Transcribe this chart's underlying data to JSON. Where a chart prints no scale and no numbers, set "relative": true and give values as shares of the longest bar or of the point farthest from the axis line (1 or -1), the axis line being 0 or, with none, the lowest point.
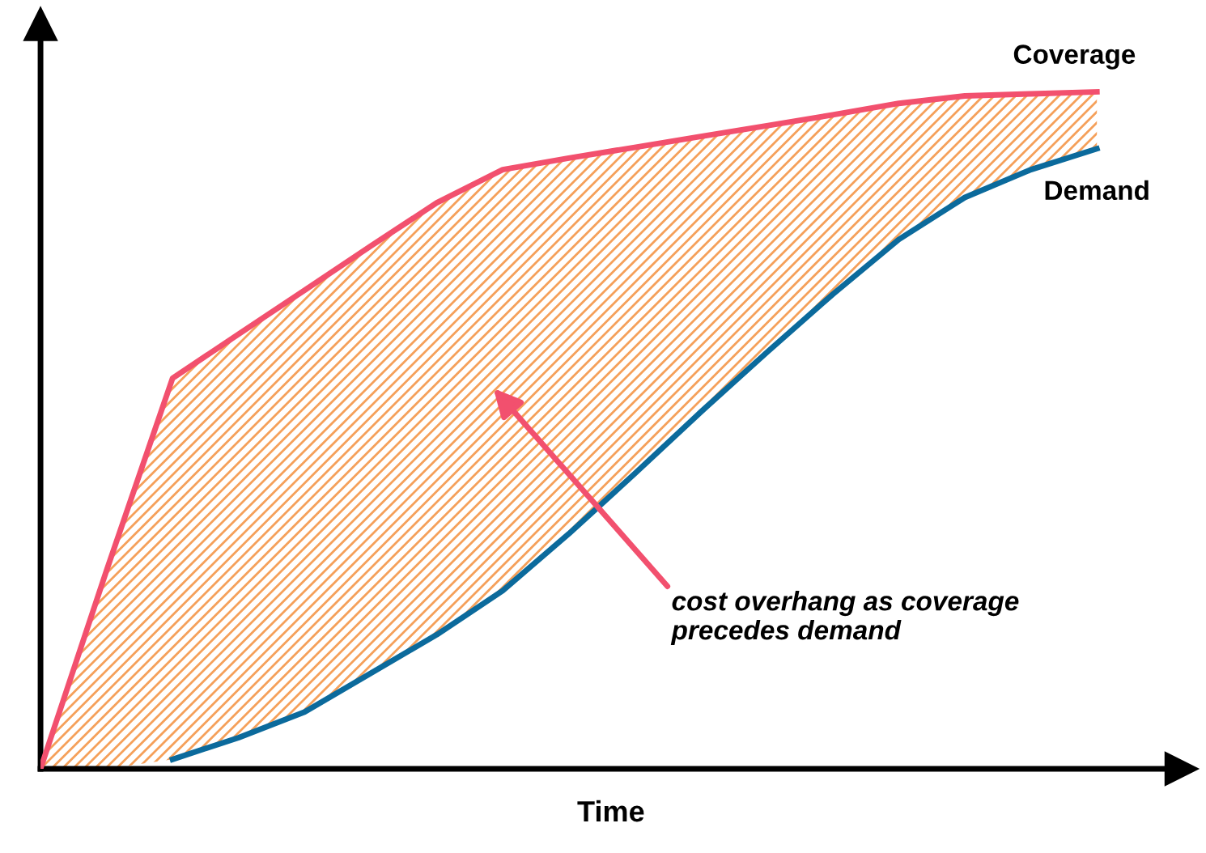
{
  "chart_data": {
    "type": "line",
    "relative": true,
    "xlabel": "Time",
    "tick_labels": false,
    "legend": false,
    "marker": "none",
    "line_style": "solid",
    "categories": [
      null,
      null,
      null,
      null,
      null,
      null,
      null,
      null,
      null,
      null,
      null,
      null,
      null,
      null,
      null,
      null,
      null
    ],
    "series": [
      {
        "name": "Coverage",
        "color": "#f2506e",
        "values": [
          0,
          0.293,
          0.577,
          0.642,
          0.707,
          0.772,
          0.836,
          0.885,
          0.902,
          0.918,
          0.934,
          0.95,
          0.966,
          0.983,
          0.994,
          0.997,
          1.0
        ],
        "lower": [
          0,
          0,
          0.014,
          0.046,
          0.084,
          0.141,
          0.198,
          0.263,
          0.347,
          0.436,
          0.527,
          0.615,
          0.701,
          0.782,
          0.844,
          0.885,
          0.916
        ],
        "upper": [
          0,
          0.293,
          0.577,
          0.642,
          0.707,
          0.772,
          0.836,
          0.885,
          0.902,
          0.918,
          0.934,
          0.95,
          0.966,
          0.983,
          0.994,
          0.997,
          1.0
        ]
      },
      {
        "name": "Demand",
        "color": "#0b6a9c",
        "values": [
          null,
          null,
          0.014,
          0.046,
          0.084,
          0.141,
          0.198,
          0.263,
          0.347,
          0.436,
          0.527,
          0.615,
          0.701,
          0.782,
          0.844,
          0.885,
          0.916
        ]
      }
    ],
    "annotations": [
      "cost overhang as coverage\nprecedes demand"
    ]
  }
}
